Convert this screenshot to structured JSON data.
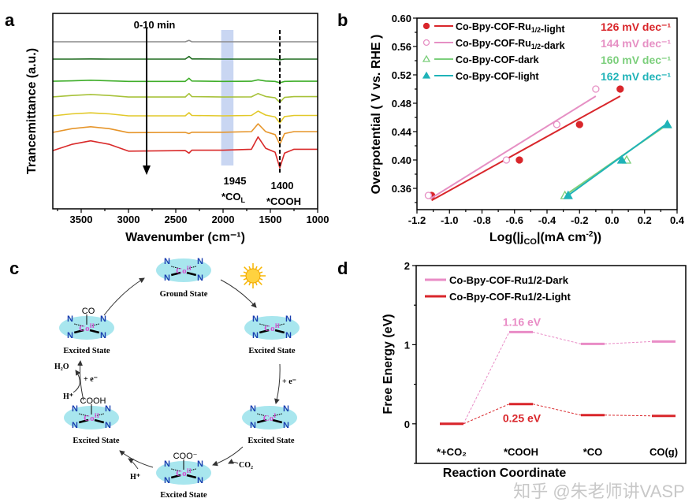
{
  "panel_labels": {
    "a": "a",
    "b": "b",
    "c": "c",
    "d": "d"
  },
  "watermark": "知乎 @朱老师讲VASP",
  "chart_data": [
    {
      "panel": "a",
      "type": "line",
      "xlabel": "Wavenumber (cm⁻¹)",
      "ylabel": "Trancemittance (a.u.)",
      "xlim": [
        3800,
        1000
      ],
      "x_reversed": true,
      "ylim": [
        0,
        10
      ],
      "xticks": [
        3500,
        3000,
        2500,
        2000,
        1500,
        1000
      ],
      "y_ticks_shown": false,
      "grid": false,
      "annotations": {
        "time_arrow": "0-10 min",
        "band_label": "1945",
        "band_species": "*CO",
        "band_species_sub": "L",
        "band_range": [
          2020,
          1890
        ],
        "band_color": "#c9d6f2",
        "line_label": "1400",
        "line_species": "*COOH",
        "line_x": 1400
      },
      "x": [
        3800,
        3600,
        3400,
        3200,
        3000,
        2400,
        2360,
        2330,
        2000,
        1700,
        1630,
        1550,
        1450,
        1400,
        1350,
        1250,
        1000
      ],
      "series": [
        {
          "color": "#8c8c8c",
          "values": [
            8.55,
            8.55,
            8.55,
            8.55,
            8.55,
            8.55,
            8.62,
            8.55,
            8.55,
            8.55,
            8.55,
            8.55,
            8.55,
            8.54,
            8.55,
            8.55,
            8.55
          ]
        },
        {
          "color": "#1f6b1f",
          "values": [
            7.66,
            7.66,
            7.67,
            7.66,
            7.66,
            7.66,
            7.8,
            7.67,
            7.66,
            7.66,
            7.66,
            7.66,
            7.66,
            7.63,
            7.66,
            7.66,
            7.66
          ]
        },
        {
          "color": "#3fae2a",
          "values": [
            6.53,
            6.55,
            6.58,
            6.55,
            6.52,
            6.52,
            6.68,
            6.54,
            6.52,
            6.53,
            6.6,
            6.54,
            6.52,
            6.45,
            6.52,
            6.53,
            6.53
          ]
        },
        {
          "color": "#a7c23a",
          "values": [
            5.73,
            5.8,
            5.85,
            5.8,
            5.72,
            5.72,
            5.9,
            5.74,
            5.72,
            5.73,
            5.9,
            5.75,
            5.68,
            5.45,
            5.7,
            5.74,
            5.74
          ]
        },
        {
          "color": "#e2c92a",
          "values": [
            4.76,
            4.86,
            4.91,
            4.86,
            4.76,
            4.76,
            4.92,
            4.78,
            4.76,
            4.78,
            5.0,
            4.8,
            4.7,
            4.4,
            4.72,
            4.78,
            4.78
          ]
        },
        {
          "color": "#e6952a",
          "values": [
            3.91,
            4.1,
            4.2,
            4.1,
            3.9,
            3.91,
            3.85,
            3.92,
            3.92,
            3.95,
            4.35,
            3.95,
            3.8,
            3.3,
            3.85,
            3.95,
            3.95
          ]
        },
        {
          "color": "#d92a2a",
          "values": [
            2.98,
            3.3,
            3.48,
            3.3,
            2.95,
            2.98,
            2.85,
            3.0,
            3.0,
            3.05,
            3.68,
            3.1,
            2.9,
            2.1,
            2.85,
            3.05,
            3.05
          ]
        }
      ]
    },
    {
      "panel": "b",
      "type": "scatter",
      "xlabel_parts": [
        "Log(|j",
        "CO",
        "|(mA cm",
        "-2",
        "))"
      ],
      "ylabel": "Overpotential ( V vs. RHE )",
      "xlim": [
        -1.2,
        0.4
      ],
      "ylim": [
        0.33,
        0.6
      ],
      "xticks": [
        "-1.2",
        "-1.0",
        "-0.8",
        "-0.6",
        "-0.4",
        "-0.2",
        "0.0",
        "0.2",
        "0.4"
      ],
      "yticks": [
        "0.36",
        "0.40",
        "0.44",
        "0.48",
        "0.52",
        "0.56",
        "0.60"
      ],
      "grid": false,
      "legend_position": "top-left",
      "series": [
        {
          "name": "Co-Bpy-COF-Ru1/2-light",
          "slope_label": "126 mV dec⁻¹",
          "color": "#d9262b",
          "marker": "circle",
          "filled": true,
          "x": [
            -1.11,
            -0.57,
            -0.2,
            0.05
          ],
          "y": [
            0.35,
            0.4,
            0.45,
            0.5
          ],
          "fit": [
            [
              -1.11,
              0.343
            ],
            [
              0.05,
              0.49
            ]
          ]
        },
        {
          "name": "Co-Bpy-COF-Ru1/2-dark",
          "slope_label": "144 mV dec⁻¹",
          "color": "#e690c4",
          "marker": "circle",
          "filled": false,
          "x": [
            -1.13,
            -0.65,
            -0.34,
            -0.1
          ],
          "y": [
            0.35,
            0.4,
            0.45,
            0.5
          ],
          "fit": [
            [
              -1.12,
              0.345
            ],
            [
              -0.1,
              0.49
            ]
          ]
        },
        {
          "name": "Co-Bpy-COF-dark",
          "slope_label": "160 mV dec⁻¹",
          "color": "#7ccf7c",
          "marker": "triangle",
          "filled": false,
          "x": [
            -0.29,
            0.09,
            0.34
          ],
          "y": [
            0.35,
            0.4,
            0.45
          ],
          "fit": [
            [
              -0.29,
              0.35
            ],
            [
              0.34,
              0.45
            ]
          ]
        },
        {
          "name": "Co-Bpy-COF-light",
          "slope_label": "162 mV dec⁻¹",
          "color": "#1fb3b8",
          "marker": "triangle",
          "filled": true,
          "x": [
            -0.27,
            0.06,
            0.34
          ],
          "y": [
            0.35,
            0.4,
            0.45
          ],
          "fit": [
            [
              -0.27,
              0.35
            ],
            [
              0.33,
              0.45
            ]
          ]
        }
      ]
    },
    {
      "panel": "d",
      "type": "line",
      "subtype": "energy-level-diagram",
      "xlabel": "Reaction Coordinate",
      "ylabel": "Free Energy (eV)",
      "ylim": [
        -0.5,
        2
      ],
      "yticks": [
        "0",
        "1",
        "2"
      ],
      "categories": [
        "*+CO₂",
        "*COOH",
        "*CO",
        "CO(g)"
      ],
      "grid": false,
      "legend_position": "top-left",
      "series": [
        {
          "name": "Co-Bpy-COF-Ru1/2-Dark",
          "color": "#e98cc6",
          "values": [
            0,
            1.16,
            1.01,
            1.04
          ],
          "annotation": "1.16 eV"
        },
        {
          "name": "Co-Bpy-COF-Ru1/2-Light",
          "color": "#d9262b",
          "values": [
            0,
            0.25,
            0.11,
            0.1
          ],
          "annotation": "0.25 eV"
        }
      ]
    }
  ],
  "diagram_c": {
    "ellipse_color": "#a8e6ee",
    "n_color": "#1a3fb0",
    "co_color": "#d24fd0",
    "states": [
      {
        "label": "Ground State",
        "metal": "Co",
        "ox": "II",
        "ligand": ""
      },
      {
        "label": "Excited State",
        "metal": "Co",
        "ox": "II",
        "ligand": ""
      },
      {
        "label": "Excited State",
        "metal": "Co",
        "ox": "I",
        "ligand": ""
      },
      {
        "label": "Excited State",
        "metal": "Co",
        "ox": "II",
        "ligand": "COO⁻"
      },
      {
        "label": "Excited State",
        "metal": "Co",
        "ox": "II",
        "ligand": "COOH"
      },
      {
        "label": "Excited State",
        "metal": "Co",
        "ox": "II",
        "ligand": "CO"
      }
    ],
    "n_label": "N",
    "reagents": {
      "electron_1": "+ e⁻",
      "co2": "CO₂",
      "proton_1": "H⁺",
      "electron_2": "+ e⁻",
      "proton_2": "H⁺",
      "water": "H₂O"
    },
    "sun_icon": "sun-icon"
  }
}
